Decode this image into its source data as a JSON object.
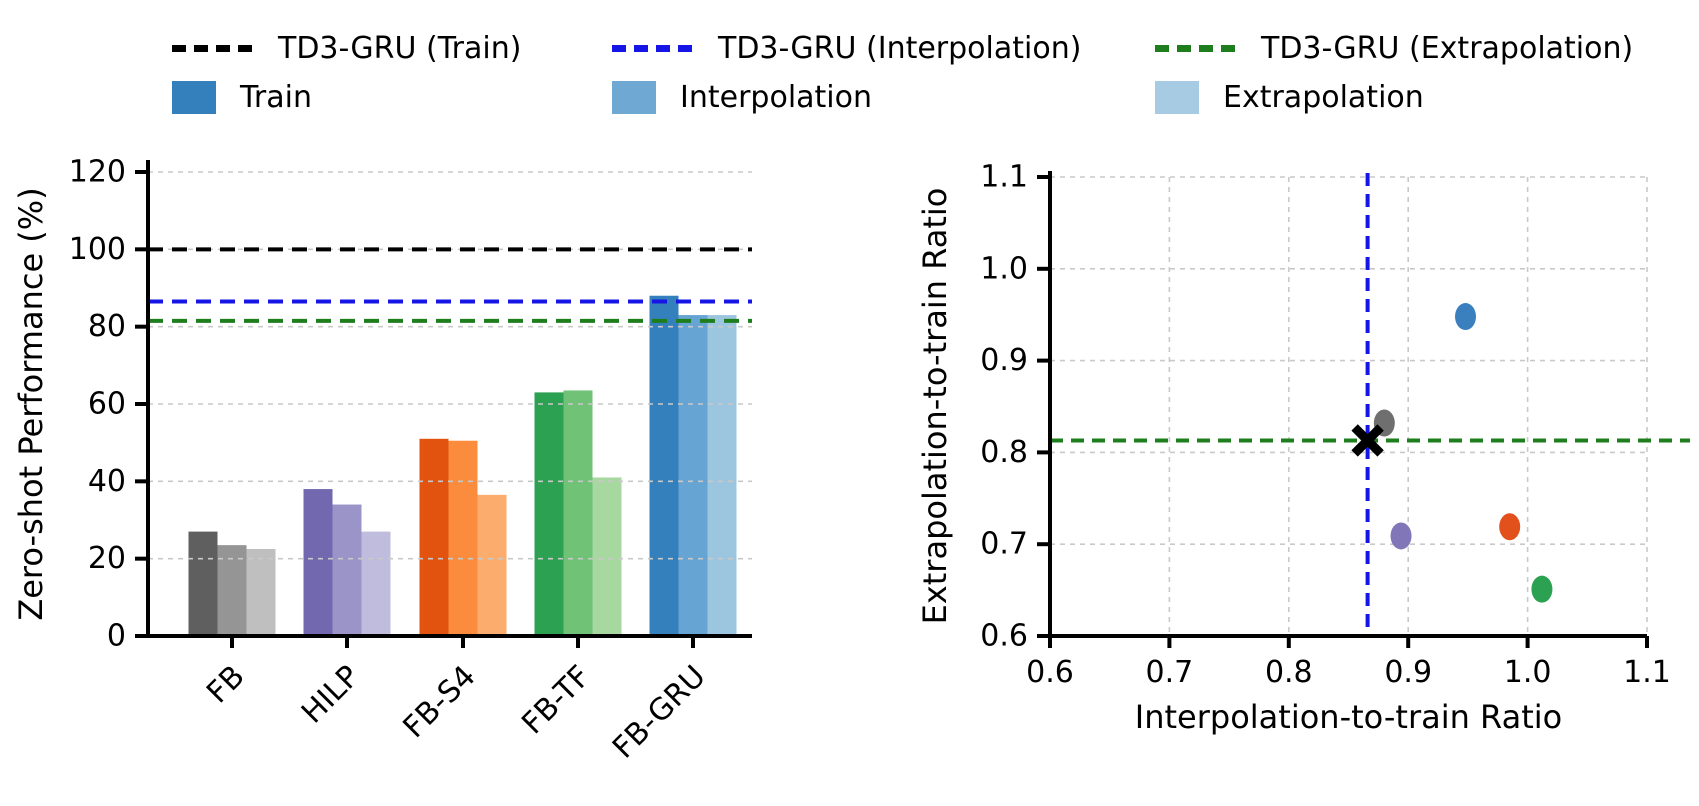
{
  "legend": {
    "line_items": [
      {
        "label": "TD3-GRU (Train)",
        "color": "#000000"
      },
      {
        "label": "TD3-GRU (Interpolation)",
        "color": "#1515e6"
      },
      {
        "label": "TD3-GRU (Extrapolation)",
        "color": "#1e7e1e"
      }
    ],
    "patch_items": [
      {
        "label": "Train",
        "color": "#3380bd"
      },
      {
        "label": "Interpolation",
        "color": "#6fa8d2"
      },
      {
        "label": "Extrapolation",
        "color": "#a6cbe3"
      }
    ]
  },
  "chart_data": [
    {
      "type": "bar",
      "title": "",
      "xlabel": "",
      "ylabel": "Zero-shot Performance (%)",
      "ylim": [
        0,
        120
      ],
      "yticks": [
        0,
        20,
        40,
        60,
        80,
        100,
        120
      ],
      "grid": "horizontal-dashed",
      "grid_color": "#c9c9c9",
      "categories": [
        "FB",
        "HILP",
        "FB-S4",
        "FB-TF",
        "FB-GRU"
      ],
      "series": [
        {
          "name": "Train",
          "values": [
            27,
            38,
            51,
            63,
            88
          ]
        },
        {
          "name": "Interpolation",
          "values": [
            23.5,
            34,
            50.5,
            63.5,
            83
          ]
        },
        {
          "name": "Extrapolation",
          "values": [
            22.5,
            27,
            36.5,
            41,
            83
          ]
        }
      ],
      "bar_colors": [
        [
          "#5f5f5f",
          "#959595",
          "#bfbfbf"
        ],
        [
          "#7268af",
          "#9b94c9",
          "#bfbcdd"
        ],
        [
          "#e25310",
          "#fb8c3d",
          "#fcad6d"
        ],
        [
          "#2da152",
          "#6fc276",
          "#a6d89f"
        ],
        [
          "#3380bd",
          "#66a5d3",
          "#9cc6e0"
        ]
      ],
      "hlines": [
        {
          "label": "TD3-GRU (Train)",
          "value": 100,
          "color": "#000000"
        },
        {
          "label": "TD3-GRU (Interpolation)",
          "value": 86.5,
          "color": "#1515e6"
        },
        {
          "label": "TD3-GRU (Extrapolation)",
          "value": 81.5,
          "color": "#1e7e1e"
        }
      ]
    },
    {
      "type": "scatter",
      "title": "",
      "xlabel": "Interpolation-to-train Ratio",
      "ylabel": "Extrapolation-to-train Ratio",
      "xlim": [
        0.6,
        1.1
      ],
      "ylim": [
        0.6,
        1.1
      ],
      "xticks": [
        0.6,
        0.7,
        0.8,
        0.9,
        1.0,
        1.1
      ],
      "yticks": [
        0.6,
        0.7,
        0.8,
        0.9,
        1.0,
        1.1
      ],
      "grid": "both-dashed",
      "grid_color": "#c9c9c9",
      "points": [
        {
          "name": "FB",
          "x": 0.88,
          "y": 0.832,
          "color": "#6f6f6f"
        },
        {
          "name": "HILP",
          "x": 0.894,
          "y": 0.709,
          "color": "#8177b8"
        },
        {
          "name": "FB-S4",
          "x": 0.985,
          "y": 0.719,
          "color": "#e2501b"
        },
        {
          "name": "FB-TF",
          "x": 1.012,
          "y": 0.651,
          "color": "#2ca152"
        },
        {
          "name": "FB-GRU",
          "x": 0.948,
          "y": 0.948,
          "color": "#3a80bf"
        }
      ],
      "reference_marker": {
        "label": "TD3-GRU",
        "x": 0.866,
        "y": 0.813,
        "marker": "X",
        "color": "#000000"
      },
      "vline": {
        "value": 0.866,
        "color": "#1515e6"
      },
      "hline": {
        "value": 0.813,
        "color": "#1e7e1e"
      }
    }
  ]
}
